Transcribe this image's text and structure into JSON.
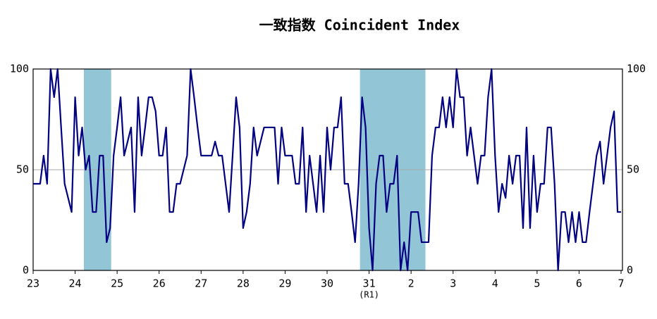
{
  "chart_data": {
    "type": "line",
    "title": "一致指数 Coincident Index",
    "annotation": "(R1)",
    "x": [
      0,
      1,
      2,
      3,
      4,
      5,
      6,
      7,
      8,
      9,
      10,
      11,
      12,
      13,
      14,
      15,
      16,
      17,
      18,
      19,
      20,
      21,
      22,
      23,
      24,
      25,
      26,
      27,
      28,
      29,
      30,
      31,
      32,
      33,
      34,
      35,
      36,
      37,
      38,
      39,
      40,
      41,
      42,
      43,
      44,
      45,
      46,
      47,
      48,
      49,
      50,
      51,
      52,
      53,
      54,
      55,
      56,
      57,
      58,
      59,
      60,
      61,
      62,
      63,
      64,
      65,
      66,
      67,
      68,
      69,
      70,
      71,
      72,
      73,
      74,
      75,
      76,
      77,
      78,
      79,
      80,
      81,
      82,
      83,
      84,
      85,
      86,
      87,
      88,
      89,
      90,
      91,
      92,
      93,
      94,
      95,
      96,
      97,
      98,
      99,
      100,
      101,
      102,
      103,
      104,
      105,
      106,
      107,
      108,
      109,
      110,
      111,
      112,
      113,
      114,
      115,
      116,
      117,
      118,
      119,
      120,
      121,
      122,
      123,
      124,
      125,
      126,
      127,
      128,
      129,
      130,
      131,
      132,
      133,
      134,
      135,
      136,
      137,
      138,
      139,
      140,
      141,
      142,
      143,
      144,
      145,
      146,
      147,
      148,
      149,
      150,
      151,
      152,
      153,
      154,
      155,
      156,
      157,
      158,
      159,
      160,
      161,
      162,
      163,
      164,
      165,
      166,
      167,
      168
    ],
    "series": [
      {
        "name": "一致指数",
        "color": "#000080",
        "values": [
          43,
          43,
          43,
          57,
          43,
          100,
          86,
          100,
          71,
          43,
          36,
          29,
          86,
          57,
          71,
          50,
          57,
          29,
          29,
          57,
          57,
          14,
          21,
          57,
          71,
          86,
          57,
          64,
          71,
          29,
          86,
          57,
          71,
          86,
          86,
          79,
          57,
          57,
          71,
          29,
          29,
          43,
          43,
          50,
          57,
          100,
          86,
          71,
          57,
          57,
          57,
          57,
          64,
          57,
          57,
          43,
          29,
          57,
          86,
          71,
          21,
          29,
          43,
          71,
          57,
          64,
          71,
          71,
          71,
          71,
          43,
          71,
          57,
          57,
          57,
          43,
          43,
          71,
          29,
          57,
          43,
          29,
          57,
          29,
          71,
          50,
          71,
          71,
          86,
          43,
          43,
          29,
          14,
          43,
          86,
          71,
          21,
          0,
          43,
          57,
          57,
          29,
          43,
          43,
          57,
          0,
          14,
          0,
          29,
          29,
          29,
          14,
          14,
          14,
          57,
          71,
          71,
          86,
          71,
          86,
          71,
          100,
          86,
          86,
          57,
          71,
          57,
          43,
          57,
          57,
          86,
          100,
          57,
          29,
          43,
          36,
          57,
          43,
          57,
          57,
          21,
          71,
          21,
          57,
          29,
          43,
          43,
          71,
          71,
          43,
          0,
          29,
          29,
          14,
          29,
          14,
          29,
          14,
          14,
          29,
          43,
          57,
          64,
          43,
          57,
          71,
          79,
          29,
          29
        ]
      }
    ],
    "shaded": [
      [
        14.5,
        22.3
      ],
      [
        93.4,
        112.1
      ]
    ],
    "shade_color": "#92c5d6",
    "xlim": [
      0,
      168.4
    ],
    "xticks": [
      {
        "value": 0,
        "label": "23"
      },
      {
        "value": 12,
        "label": "24"
      },
      {
        "value": 24,
        "label": "25"
      },
      {
        "value": 36,
        "label": "26"
      },
      {
        "value": 48,
        "label": "27"
      },
      {
        "value": 60,
        "label": "28"
      },
      {
        "value": 72,
        "label": "29"
      },
      {
        "value": 84,
        "label": "30"
      },
      {
        "value": 96,
        "label": "31"
      },
      {
        "value": 108,
        "label": "2"
      },
      {
        "value": 120,
        "label": "3"
      },
      {
        "value": 132,
        "label": "4"
      },
      {
        "value": 144,
        "label": "5"
      },
      {
        "value": 156,
        "label": "6"
      },
      {
        "value": 168,
        "label": "7"
      }
    ],
    "ylim": [
      0,
      100
    ],
    "yticks": [
      0,
      50,
      100
    ],
    "grid": true
  }
}
